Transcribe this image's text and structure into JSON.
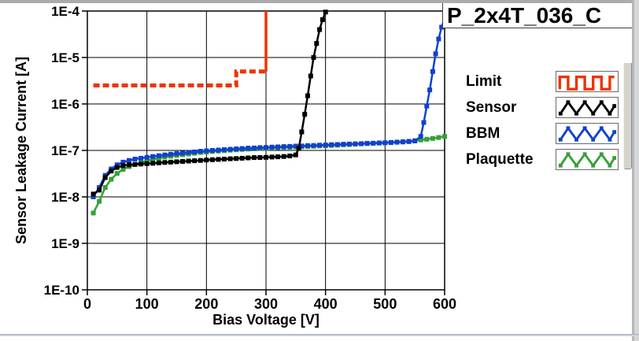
{
  "title": "P_2x4T_036_C",
  "legend": {
    "items": [
      {
        "label": "Limit",
        "color": "#ee3300",
        "pattern": "square-wave"
      },
      {
        "label": "Sensor",
        "color": "#000000",
        "pattern": "zigzag"
      },
      {
        "label": "BBM",
        "color": "#1141cd",
        "pattern": "zigzag"
      },
      {
        "label": "Plaquette",
        "color": "#35a135",
        "pattern": "zigzag"
      }
    ]
  },
  "chart_data": {
    "type": "line",
    "title": "P_2x4T_036_C",
    "xlabel": "Bias Voltage [V]",
    "ylabel": "Sensor Leakage Current [A]",
    "x_scale": "linear",
    "y_scale": "log",
    "xlim": [
      0,
      600
    ],
    "ylim": [
      1e-10,
      0.0001
    ],
    "grid": true,
    "legend_position": "right",
    "x_ticks": [
      0,
      100,
      200,
      300,
      400,
      500,
      600
    ],
    "y_ticks": [
      "1E-4",
      "1E-5",
      "1E-6",
      "1E-7",
      "1E-8",
      "1E-9",
      "1E-10"
    ],
    "series": [
      {
        "name": "Limit",
        "color": "#ee3300",
        "style": "thick-dashed-step",
        "dash_until": 3,
        "points": [
          [
            10,
            2.5e-06
          ],
          [
            250,
            2.5e-06
          ],
          [
            250,
            5e-06
          ],
          [
            300,
            5e-06
          ],
          [
            300,
            0.0001
          ]
        ]
      },
      {
        "name": "Sensor",
        "color": "#000000",
        "style": "line-square-markers",
        "points": [
          [
            10,
            1.15e-08
          ],
          [
            20,
            1.4e-08
          ],
          [
            30,
            2.6e-08
          ],
          [
            40,
            3.6e-08
          ],
          [
            50,
            4.3e-08
          ],
          [
            60,
            4.7e-08
          ],
          [
            70,
            4.9e-08
          ],
          [
            80,
            5e-08
          ],
          [
            90,
            5.1e-08
          ],
          [
            100,
            5.2e-08
          ],
          [
            110,
            5.3e-08
          ],
          [
            120,
            5.4e-08
          ],
          [
            130,
            5.5e-08
          ],
          [
            140,
            5.6e-08
          ],
          [
            150,
            5.7e-08
          ],
          [
            160,
            5.8e-08
          ],
          [
            170,
            5.9e-08
          ],
          [
            180,
            6e-08
          ],
          [
            190,
            6.1e-08
          ],
          [
            200,
            6.2e-08
          ],
          [
            210,
            6.3e-08
          ],
          [
            220,
            6.4e-08
          ],
          [
            230,
            6.5e-08
          ],
          [
            240,
            6.6e-08
          ],
          [
            250,
            6.7e-08
          ],
          [
            260,
            6.8e-08
          ],
          [
            270,
            6.9e-08
          ],
          [
            280,
            7e-08
          ],
          [
            290,
            7.05e-08
          ],
          [
            300,
            7.1e-08
          ],
          [
            310,
            7.2e-08
          ],
          [
            320,
            7.3e-08
          ],
          [
            330,
            7.4e-08
          ],
          [
            340,
            7.6e-08
          ],
          [
            350,
            8e-08
          ],
          [
            355,
            1.1e-07
          ],
          [
            360,
            2.5e-07
          ],
          [
            365,
            6e-07
          ],
          [
            370,
            1.5e-06
          ],
          [
            375,
            4e-06
          ],
          [
            380,
            1e-05
          ],
          [
            385,
            2e-05
          ],
          [
            390,
            4e-05
          ],
          [
            395,
            6.5e-05
          ],
          [
            400,
            9.5e-05
          ]
        ]
      },
      {
        "name": "BBM",
        "color": "#1141cd",
        "style": "line-square-markers",
        "points": [
          [
            10,
            1e-08
          ],
          [
            20,
            1.6e-08
          ],
          [
            30,
            2.9e-08
          ],
          [
            40,
            4e-08
          ],
          [
            50,
            4.9e-08
          ],
          [
            60,
            5.6e-08
          ],
          [
            70,
            6.1e-08
          ],
          [
            80,
            6.5e-08
          ],
          [
            90,
            6.8e-08
          ],
          [
            100,
            7.1e-08
          ],
          [
            110,
            7.4e-08
          ],
          [
            120,
            7.7e-08
          ],
          [
            130,
            8e-08
          ],
          [
            140,
            8.3e-08
          ],
          [
            150,
            8.6e-08
          ],
          [
            160,
            8.8e-08
          ],
          [
            170,
            9.1e-08
          ],
          [
            180,
            9.3e-08
          ],
          [
            190,
            9.6e-08
          ],
          [
            200,
            9.8e-08
          ],
          [
            210,
            1e-07
          ],
          [
            220,
            1.02e-07
          ],
          [
            230,
            1.04e-07
          ],
          [
            240,
            1.06e-07
          ],
          [
            250,
            1.08e-07
          ],
          [
            260,
            1.1e-07
          ],
          [
            270,
            1.12e-07
          ],
          [
            280,
            1.13e-07
          ],
          [
            290,
            1.15e-07
          ],
          [
            300,
            1.16e-07
          ],
          [
            310,
            1.18e-07
          ],
          [
            320,
            1.19e-07
          ],
          [
            330,
            1.21e-07
          ],
          [
            340,
            1.22e-07
          ],
          [
            350,
            1.24e-07
          ],
          [
            360,
            1.25e-07
          ],
          [
            370,
            1.27e-07
          ],
          [
            380,
            1.28e-07
          ],
          [
            390,
            1.3e-07
          ],
          [
            400,
            1.31e-07
          ],
          [
            410,
            1.33e-07
          ],
          [
            420,
            1.34e-07
          ],
          [
            430,
            1.36e-07
          ],
          [
            440,
            1.37e-07
          ],
          [
            450,
            1.39e-07
          ],
          [
            460,
            1.4e-07
          ],
          [
            470,
            1.42e-07
          ],
          [
            480,
            1.43e-07
          ],
          [
            490,
            1.45e-07
          ],
          [
            500,
            1.46e-07
          ],
          [
            510,
            1.48e-07
          ],
          [
            520,
            1.5e-07
          ],
          [
            530,
            1.52e-07
          ],
          [
            540,
            1.55e-07
          ],
          [
            550,
            1.6e-07
          ],
          [
            560,
            2e-07
          ],
          [
            565,
            4e-07
          ],
          [
            570,
            9e-07
          ],
          [
            575,
            2e-06
          ],
          [
            580,
            5e-06
          ],
          [
            585,
            1.2e-05
          ],
          [
            590,
            2.5e-05
          ],
          [
            595,
            4.5e-05
          ],
          [
            600,
            7e-05
          ]
        ]
      },
      {
        "name": "Plaquette",
        "color": "#35a135",
        "style": "line-square-markers",
        "points": [
          [
            10,
            4.5e-09
          ],
          [
            20,
            8e-09
          ],
          [
            30,
            1.6e-08
          ],
          [
            40,
            2.4e-08
          ],
          [
            50,
            3.2e-08
          ],
          [
            60,
            3.9e-08
          ],
          [
            70,
            4.5e-08
          ],
          [
            80,
            5e-08
          ],
          [
            90,
            5.5e-08
          ],
          [
            100,
            6e-08
          ],
          [
            110,
            6.4e-08
          ],
          [
            120,
            6.8e-08
          ],
          [
            130,
            7.2e-08
          ],
          [
            140,
            7.5e-08
          ],
          [
            150,
            7.8e-08
          ],
          [
            160,
            8.1e-08
          ],
          [
            170,
            8.4e-08
          ],
          [
            180,
            8.7e-08
          ],
          [
            190,
            9e-08
          ],
          [
            200,
            9.2e-08
          ],
          [
            210,
            9.5e-08
          ],
          [
            220,
            9.7e-08
          ],
          [
            230,
            9.9e-08
          ],
          [
            240,
            1.01e-07
          ],
          [
            250,
            1.03e-07
          ],
          [
            260,
            1.05e-07
          ],
          [
            270,
            1.07e-07
          ],
          [
            280,
            1.08e-07
          ],
          [
            290,
            1.1e-07
          ],
          [
            300,
            1.11e-07
          ],
          [
            310,
            1.13e-07
          ],
          [
            320,
            1.14e-07
          ],
          [
            330,
            1.16e-07
          ],
          [
            340,
            1.17e-07
          ],
          [
            350,
            1.19e-07
          ],
          [
            360,
            1.2e-07
          ],
          [
            370,
            1.22e-07
          ],
          [
            380,
            1.23e-07
          ],
          [
            390,
            1.25e-07
          ],
          [
            400,
            1.26e-07
          ],
          [
            410,
            1.28e-07
          ],
          [
            420,
            1.3e-07
          ],
          [
            430,
            1.32e-07
          ],
          [
            440,
            1.34e-07
          ],
          [
            450,
            1.36e-07
          ],
          [
            460,
            1.38e-07
          ],
          [
            470,
            1.4e-07
          ],
          [
            480,
            1.42e-07
          ],
          [
            490,
            1.44e-07
          ],
          [
            500,
            1.46e-07
          ],
          [
            510,
            1.49e-07
          ],
          [
            520,
            1.52e-07
          ],
          [
            530,
            1.55e-07
          ],
          [
            540,
            1.58e-07
          ],
          [
            550,
            1.62e-07
          ],
          [
            560,
            1.68e-07
          ],
          [
            570,
            1.74e-07
          ],
          [
            580,
            1.81e-07
          ],
          [
            590,
            1.9e-07
          ],
          [
            600,
            2e-07
          ]
        ]
      }
    ]
  }
}
